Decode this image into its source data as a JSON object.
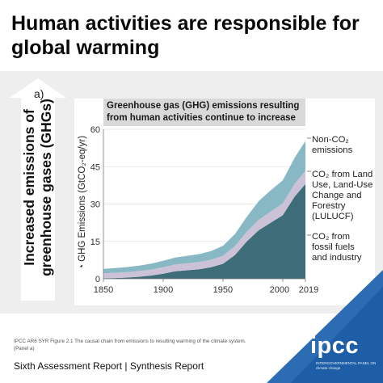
{
  "headline": "Human activities are responsible for global warming",
  "panel_tag": "a)",
  "arrow_label": "Increased emissions of greenhouse gases (GHGs)",
  "caption": "IPCC AR6 SYR Figure 2.1 The causal chain from emissions to resulting warming of the climate system. (Panel a)",
  "footer": "Sixth Assessment Report | Synthesis Report",
  "logo": {
    "name": "ipcc",
    "subtitle": "INTERGOVERNMENTAL PANEL ON climate change"
  },
  "colors": {
    "panel_bg": "#eeeeee",
    "header_bg": "#d9d9d9",
    "co2_fossil": "#3e6d79",
    "co2_luluc": "#cbc2d8",
    "non_co2": "#88b8c3",
    "accent_blue": "#2b6cb3"
  },
  "chart_data": {
    "type": "area",
    "stacked": true,
    "title": "Greenhouse gas (GHG) emissions resulting from human activities continue to increase",
    "ylabel": "GHG Emissions (GtCO₂-eq/yr)",
    "xlim": [
      1850,
      2019
    ],
    "ylim": [
      0,
      60
    ],
    "x_ticks": [
      1850,
      1900,
      1950,
      2000,
      2019
    ],
    "y_ticks": [
      0,
      15,
      30,
      45,
      60
    ],
    "x": [
      1850,
      1860,
      1870,
      1880,
      1890,
      1900,
      1910,
      1920,
      1930,
      1940,
      1950,
      1960,
      1970,
      1980,
      1990,
      2000,
      2010,
      2019
    ],
    "series": [
      {
        "name": "CO₂ from fossil fuels and industry",
        "color": "#3e6d79",
        "values": [
          0.2,
          0.3,
          0.5,
          0.8,
          1.3,
          2.0,
          3.0,
          3.4,
          3.8,
          4.6,
          6.0,
          9.5,
          15.0,
          19.5,
          22.5,
          25.5,
          33.0,
          38.0
        ]
      },
      {
        "name": "CO₂ from Land Use, Land-Use Change and Forestry (LULUCF)",
        "color": "#cbc2d8",
        "values": [
          2.0,
          2.1,
          2.2,
          2.3,
          2.4,
          2.6,
          2.7,
          2.8,
          2.9,
          3.0,
          3.2,
          3.6,
          3.9,
          4.2,
          4.5,
          4.8,
          5.1,
          5.3
        ]
      },
      {
        "name": "Non-CO₂ emissions",
        "color": "#88b8c3",
        "values": [
          1.8,
          1.9,
          2.0,
          2.2,
          2.4,
          2.6,
          2.8,
          3.0,
          3.2,
          3.5,
          4.0,
          4.8,
          6.0,
          7.5,
          8.5,
          9.2,
          10.5,
          12.0
        ]
      }
    ],
    "series_labels": [
      {
        "text": "Non-CO₂ emissions"
      },
      {
        "text": "CO₂ from Land Use, Land-Use Change and Forestry (LULUCF)"
      },
      {
        "text": "CO₂ from fossil fuels and industry"
      }
    ]
  }
}
